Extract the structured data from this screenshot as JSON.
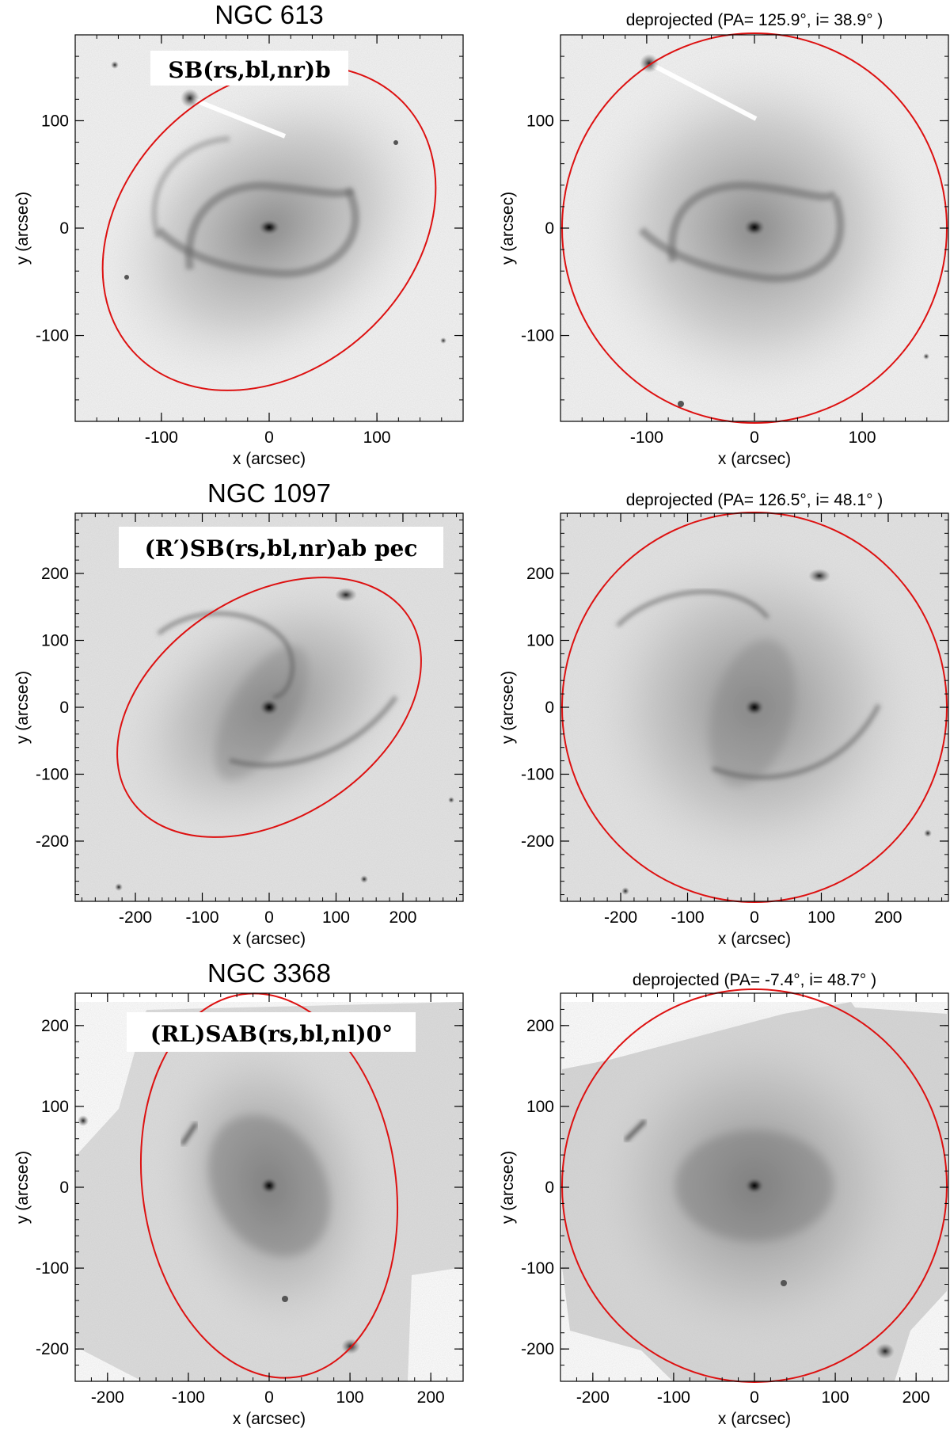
{
  "panels": [
    {
      "id": "ngc613",
      "title": "NGC  613",
      "subtitle": "deprojected  (PA= 125.9°, i= 38.9° )",
      "classification": "SB(rs,bl,nr)b",
      "xlabel": "x (arcsec)",
      "ylabel": "y (arcsec)",
      "ticks": [
        "-100",
        "0",
        "100"
      ]
    },
    {
      "id": "ngc1097",
      "title": "NGC 1097",
      "subtitle": "deprojected  (PA= 126.5°, i= 48.1° )",
      "classification": "(R′)SB(rs,bl,nr)ab pec",
      "xlabel": "x (arcsec)",
      "ylabel": "y (arcsec)",
      "ticks": [
        "-200",
        "-100",
        "0",
        "100",
        "200"
      ]
    },
    {
      "id": "ngc3368",
      "title": "NGC 3368",
      "subtitle": "deprojected  (PA= -7.4°, i= 48.7° )",
      "classification": "(RL)SAB(rs,bl,nl)0°",
      "xlabel": "x (arcsec)",
      "ylabel": "y (arcsec)",
      "ticks": [
        "-200",
        "-100",
        "0",
        "100",
        "200"
      ]
    }
  ],
  "colors": {
    "ellipse": "#dd1111",
    "frame": "#000000"
  }
}
